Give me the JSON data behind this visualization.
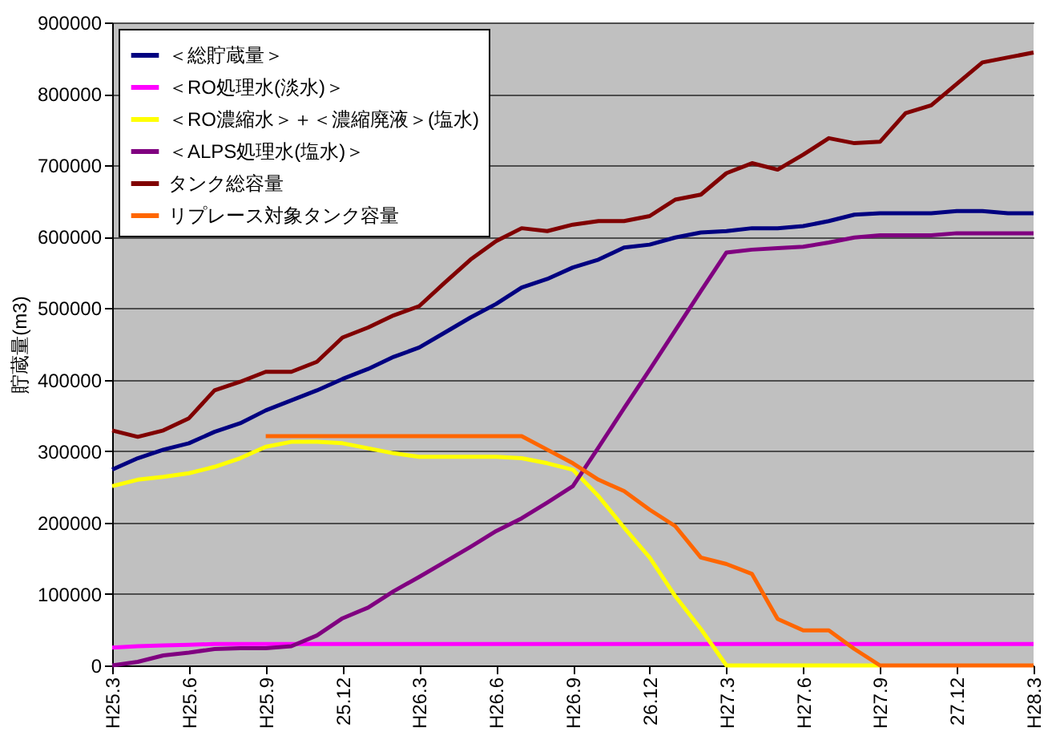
{
  "chart_data": {
    "type": "line",
    "ylabel": "貯蔵量(m3)",
    "categories": [
      "H25.3",
      null,
      null,
      "H25.6",
      null,
      null,
      "H25.9",
      null,
      null,
      "25.12",
      null,
      null,
      "H26.3",
      null,
      null,
      "H26.6",
      null,
      null,
      "H26.9",
      null,
      null,
      "26.12",
      null,
      null,
      "H27.3",
      null,
      null,
      "H27.6",
      null,
      null,
      "H27.9",
      null,
      null,
      "27.12",
      null,
      null,
      "H28.3"
    ],
    "series": [
      {
        "name": "＜総貯蔵量＞",
        "color": "#000080",
        "values": [
          274000,
          290000,
          302000,
          311000,
          327000,
          339000,
          357000,
          371000,
          385000,
          401000,
          415000,
          432000,
          445000,
          466000,
          487000,
          506000,
          529000,
          541000,
          557000,
          568000,
          585000,
          589000,
          599000,
          606000,
          608000,
          612000,
          612000,
          615000,
          622000,
          631000,
          633000,
          633000,
          633000,
          636000,
          636000,
          633000,
          633000
        ]
      },
      {
        "name": "＜RO処理水(淡水)＞",
        "color": "#ff00ff",
        "values": [
          25000,
          27000,
          28000,
          29000,
          30000,
          30000,
          30000,
          30000,
          30000,
          30000,
          30000,
          30000,
          30000,
          30000,
          30000,
          30000,
          30000,
          30000,
          30000,
          30000,
          30000,
          30000,
          30000,
          30000,
          30000,
          30000,
          30000,
          30000,
          30000,
          30000,
          30000,
          30000,
          30000,
          30000,
          30000,
          30000,
          30000
        ]
      },
      {
        "name": "＜RO濃縮水＞＋＜濃縮廃液＞(塩水)",
        "color": "#ffff00",
        "values": [
          251000,
          260000,
          264000,
          269000,
          278000,
          290000,
          306000,
          313000,
          313000,
          311000,
          304000,
          297000,
          292000,
          292000,
          292000,
          292000,
          290000,
          283000,
          274000,
          237000,
          193000,
          151000,
          97000,
          51000,
          0,
          0,
          0,
          0,
          0,
          0,
          0,
          null,
          null,
          null,
          null,
          null,
          null
        ]
      },
      {
        "name": "＜ALPS処理水(塩水)＞",
        "color": "#800080",
        "values": [
          0,
          5000,
          14000,
          18000,
          23000,
          24000,
          24000,
          27000,
          42000,
          66000,
          81000,
          104000,
          124000,
          145000,
          166000,
          188000,
          206000,
          228000,
          251000,
          305000,
          360000,
          414000,
          469000,
          524000,
          578000,
          582000,
          584000,
          586000,
          592000,
          599000,
          602000,
          602000,
          602000,
          605000,
          605000,
          605000,
          605000
        ]
      },
      {
        "name": "タンク総容量",
        "color": "#800000",
        "values": [
          329000,
          320000,
          329000,
          346000,
          385000,
          397000,
          411000,
          411000,
          425000,
          459000,
          473000,
          490000,
          503000,
          536000,
          568000,
          594000,
          612000,
          608000,
          617000,
          622000,
          622000,
          629000,
          652000,
          659000,
          689000,
          703000,
          694000,
          715000,
          738000,
          731000,
          733000,
          773000,
          784000,
          814000,
          844000,
          851000,
          858000
        ]
      },
      {
        "name": "リプレース対象タンク容量",
        "color": "#ff6600",
        "values": [
          null,
          null,
          null,
          null,
          null,
          null,
          321000,
          321000,
          321000,
          321000,
          321000,
          321000,
          321000,
          321000,
          321000,
          321000,
          321000,
          302000,
          283000,
          260000,
          244000,
          218000,
          195000,
          151000,
          142000,
          128000,
          65000,
          49000,
          49000,
          23000,
          0,
          0,
          0,
          0,
          0,
          0,
          0
        ]
      }
    ],
    "ylim": [
      0,
      900000
    ],
    "yticks": [
      0,
      100000,
      200000,
      300000,
      400000,
      500000,
      600000,
      700000,
      800000,
      900000
    ],
    "grid": "y",
    "legend": "top left"
  }
}
